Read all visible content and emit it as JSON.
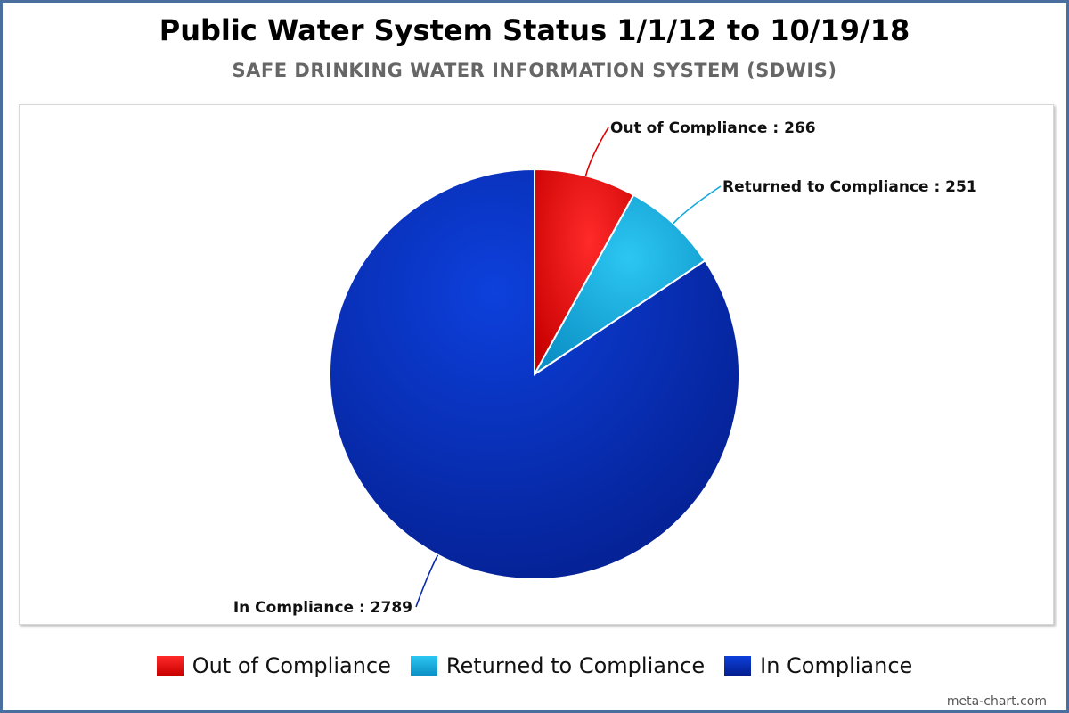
{
  "chart_data": {
    "type": "pie",
    "title": "Public Water System Status 1/1/12 to 10/19/18",
    "subtitle": "SAFE DRINKING WATER INFORMATION SYSTEM (SDWIS)",
    "slices": [
      {
        "label": "Out of Compliance",
        "value": 266,
        "data_label": "Out of Compliance : 266",
        "color": "#e00000"
      },
      {
        "label": "Returned to Compliance",
        "value": 251,
        "data_label": "Returned to Compliance : 251",
        "color": "#11a8dc"
      },
      {
        "label": "In Compliance",
        "value": 2789,
        "data_label": "In Compliance : 2789",
        "color": "#0a2aab"
      }
    ],
    "legend_position": "bottom-center"
  },
  "credit": "meta-chart.com"
}
